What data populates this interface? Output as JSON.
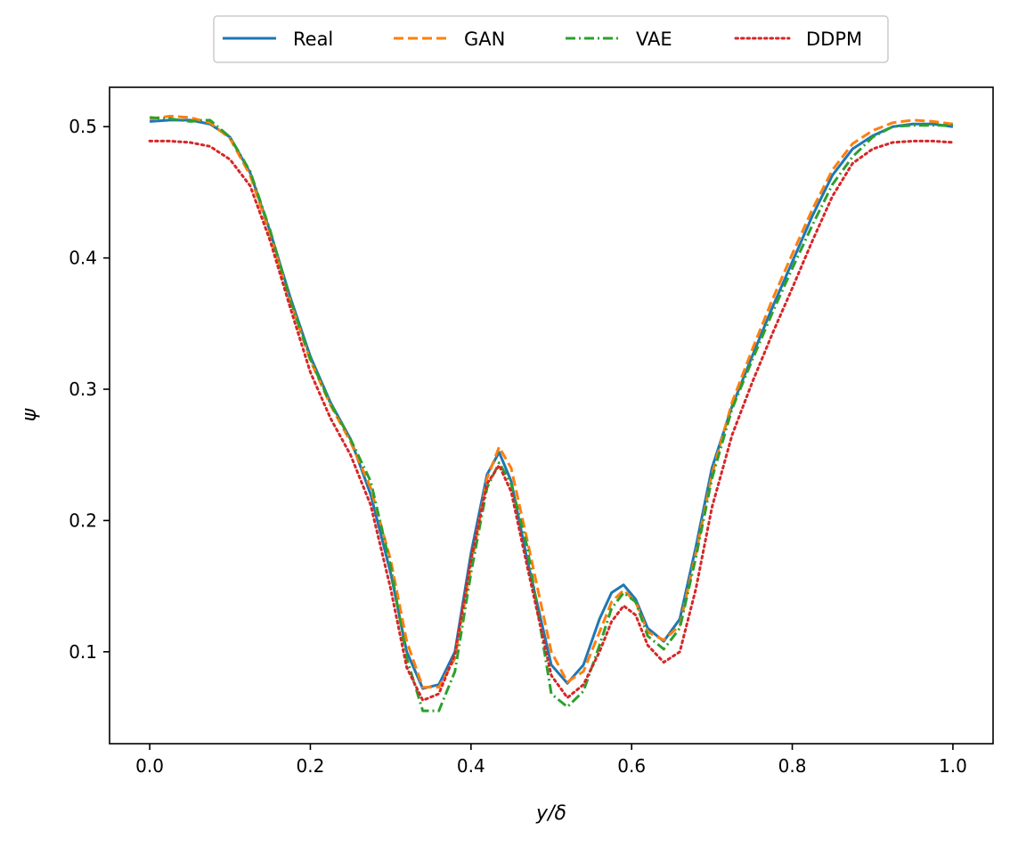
{
  "chart_data": {
    "type": "line",
    "title": "",
    "xlabel": "y/δ",
    "ylabel": "ψ",
    "xlim": [
      -0.05,
      1.05
    ],
    "ylim": [
      0.03,
      0.53
    ],
    "xticks": [
      0.0,
      0.2,
      0.4,
      0.6,
      0.8,
      1.0
    ],
    "xtick_labels": [
      "0.0",
      "0.2",
      "0.4",
      "0.6",
      "0.8",
      "1.0"
    ],
    "yticks": [
      0.1,
      0.2,
      0.3,
      0.4,
      0.5
    ],
    "ytick_labels": [
      "0.1",
      "0.2",
      "0.3",
      "0.4",
      "0.5"
    ],
    "grid": false,
    "legend_position": "top-center, outside",
    "x": [
      0.0,
      0.025,
      0.05,
      0.075,
      0.1,
      0.125,
      0.15,
      0.175,
      0.2,
      0.225,
      0.25,
      0.275,
      0.3,
      0.32,
      0.34,
      0.36,
      0.38,
      0.4,
      0.42,
      0.435,
      0.45,
      0.47,
      0.5,
      0.52,
      0.54,
      0.56,
      0.575,
      0.59,
      0.605,
      0.62,
      0.64,
      0.66,
      0.68,
      0.7,
      0.725,
      0.75,
      0.775,
      0.8,
      0.825,
      0.85,
      0.875,
      0.9,
      0.925,
      0.95,
      0.975,
      1.0
    ],
    "series": [
      {
        "name": "Real",
        "color": "#1f77b4",
        "dash": "solid",
        "values": [
          0.504,
          0.505,
          0.505,
          0.502,
          0.492,
          0.465,
          0.42,
          0.37,
          0.325,
          0.29,
          0.262,
          0.22,
          0.16,
          0.1,
          0.072,
          0.075,
          0.1,
          0.175,
          0.235,
          0.252,
          0.23,
          0.17,
          0.09,
          0.076,
          0.09,
          0.125,
          0.145,
          0.151,
          0.14,
          0.118,
          0.108,
          0.125,
          0.18,
          0.24,
          0.287,
          0.325,
          0.362,
          0.397,
          0.432,
          0.463,
          0.483,
          0.493,
          0.5,
          0.502,
          0.502,
          0.5
        ]
      },
      {
        "name": "GAN",
        "color": "#ff7f0e",
        "dash": "dashed",
        "values": [
          0.506,
          0.508,
          0.507,
          0.503,
          0.491,
          0.463,
          0.418,
          0.367,
          0.322,
          0.288,
          0.26,
          0.225,
          0.17,
          0.108,
          0.073,
          0.073,
          0.095,
          0.165,
          0.232,
          0.256,
          0.24,
          0.185,
          0.1,
          0.077,
          0.085,
          0.115,
          0.138,
          0.147,
          0.138,
          0.115,
          0.109,
          0.12,
          0.175,
          0.235,
          0.29,
          0.33,
          0.368,
          0.403,
          0.437,
          0.467,
          0.487,
          0.497,
          0.503,
          0.505,
          0.504,
          0.502
        ]
      },
      {
        "name": "VAE",
        "color": "#2ca02c",
        "dash": "dashdot",
        "values": [
          0.507,
          0.506,
          0.504,
          0.505,
          0.492,
          0.466,
          0.421,
          0.368,
          0.323,
          0.289,
          0.262,
          0.23,
          0.165,
          0.095,
          0.055,
          0.055,
          0.085,
          0.16,
          0.225,
          0.244,
          0.228,
          0.18,
          0.068,
          0.058,
          0.07,
          0.105,
          0.133,
          0.145,
          0.138,
          0.112,
          0.102,
          0.118,
          0.172,
          0.232,
          0.285,
          0.322,
          0.358,
          0.392,
          0.425,
          0.456,
          0.477,
          0.492,
          0.5,
          0.501,
          0.501,
          0.501
        ]
      },
      {
        "name": "DDPM",
        "color": "#d62728",
        "dash": "dotted",
        "values": [
          0.489,
          0.489,
          0.488,
          0.485,
          0.475,
          0.455,
          0.413,
          0.362,
          0.313,
          0.278,
          0.25,
          0.212,
          0.148,
          0.088,
          0.063,
          0.068,
          0.098,
          0.17,
          0.228,
          0.242,
          0.222,
          0.165,
          0.082,
          0.065,
          0.075,
          0.1,
          0.123,
          0.135,
          0.128,
          0.105,
          0.092,
          0.1,
          0.148,
          0.21,
          0.265,
          0.305,
          0.342,
          0.377,
          0.413,
          0.447,
          0.472,
          0.483,
          0.488,
          0.489,
          0.489,
          0.488
        ]
      }
    ]
  }
}
